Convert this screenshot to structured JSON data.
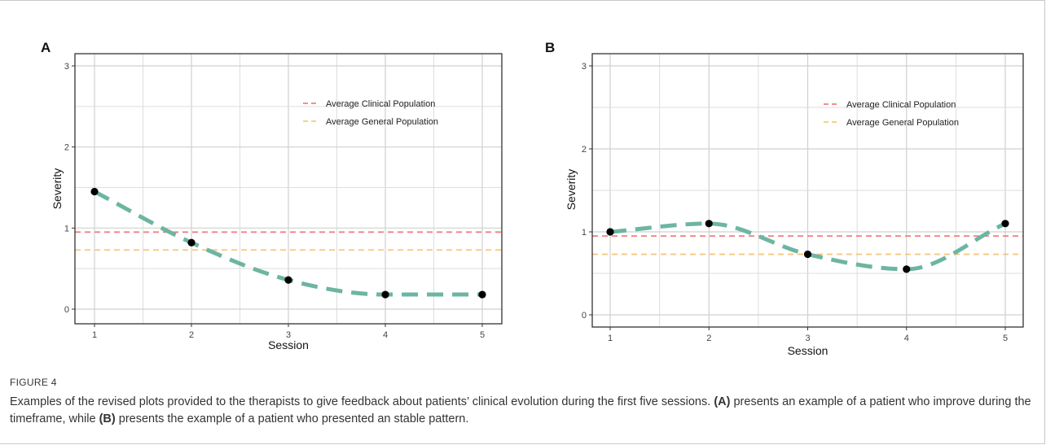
{
  "chart_data": [
    {
      "panel_label": "A",
      "type": "line",
      "xlabel": "Session",
      "ylabel": "Severity",
      "xlim": [
        1,
        5
      ],
      "ylim": [
        0,
        3
      ],
      "x_ticks": [
        "1",
        "2",
        "3",
        "4",
        "5"
      ],
      "y_ticks": [
        "0",
        "1",
        "2",
        "3"
      ],
      "grid": true,
      "legend_position": "top-right",
      "series": [
        {
          "name": "",
          "x": [
            1,
            2,
            3,
            4,
            5
          ],
          "values": [
            1.45,
            0.82,
            0.36,
            0.18,
            0.18
          ],
          "color": "#6db5a2",
          "style": "dashed"
        }
      ],
      "reference_lines": [
        {
          "name": "Average Clinical Population",
          "value": 0.95,
          "color": "#f08080"
        },
        {
          "name": "Average General Population",
          "value": 0.73,
          "color": "#f5c77e"
        }
      ]
    },
    {
      "panel_label": "B",
      "type": "line",
      "xlabel": "Session",
      "ylabel": "Severity",
      "xlim": [
        1,
        5
      ],
      "ylim": [
        0,
        3
      ],
      "x_ticks": [
        "1",
        "2",
        "3",
        "4",
        "5"
      ],
      "y_ticks": [
        "0",
        "1",
        "2",
        "3"
      ],
      "grid": true,
      "legend_position": "top-right",
      "series": [
        {
          "name": "",
          "x": [
            1,
            2,
            3,
            4,
            5
          ],
          "values": [
            1.0,
            1.1,
            0.73,
            0.55,
            1.1
          ],
          "color": "#6db5a2",
          "style": "dashed"
        }
      ],
      "reference_lines": [
        {
          "name": "Average Clinical Population",
          "value": 0.95,
          "color": "#f08080"
        },
        {
          "name": "Average General Population",
          "value": 0.73,
          "color": "#f5c77e"
        }
      ]
    }
  ],
  "caption": {
    "label": "FIGURE 4",
    "text_1": "Examples of the revised plots provided to the therapists to give feedback about patients’ clinical evolution during the first five sessions. ",
    "ref_a": "(A)",
    "text_2": " presents an example of a patient who improve during the timeframe, while ",
    "ref_b": "(B)",
    "text_3": " presents the example of a patient who presented an stable pattern."
  }
}
